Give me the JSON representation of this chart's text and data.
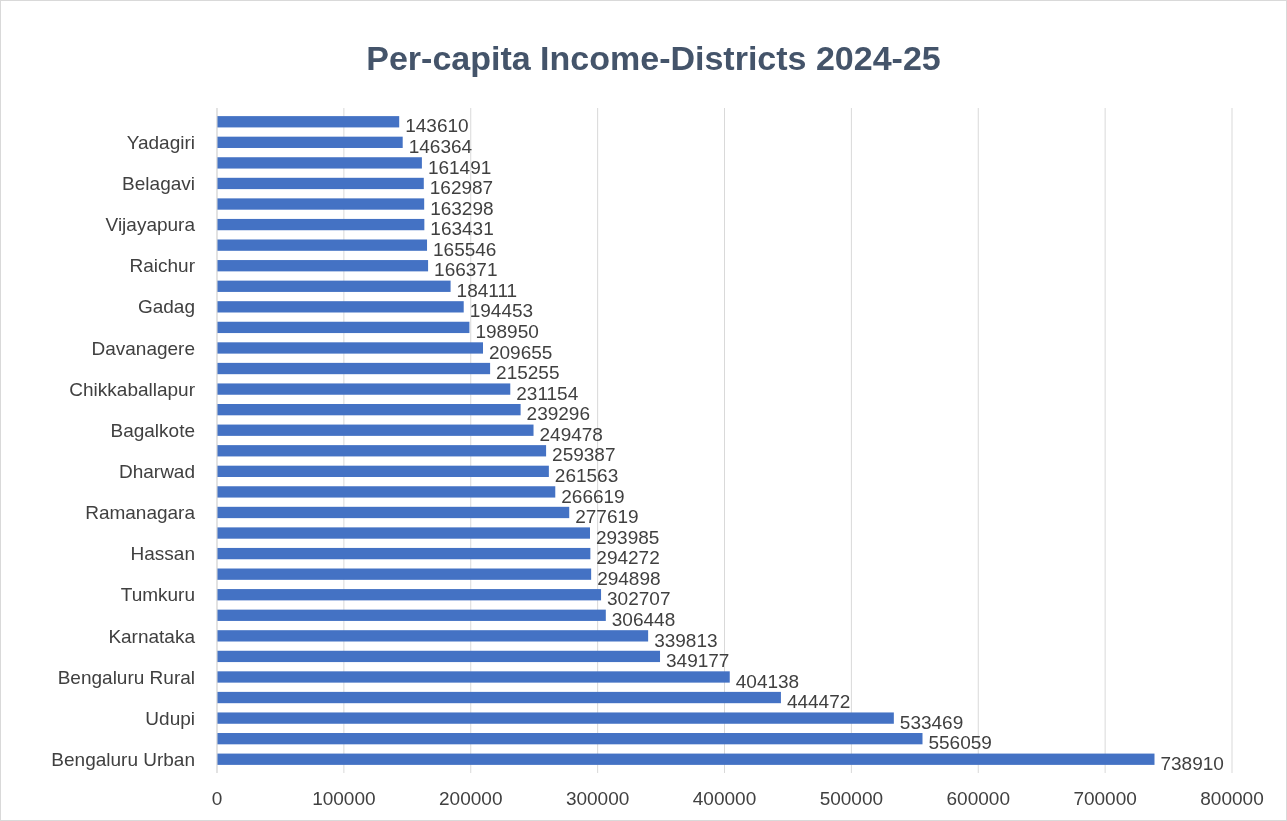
{
  "chart_data": {
    "type": "bar",
    "orientation": "horizontal",
    "title": "Per-capita Income-Districts 2024-25",
    "categories": [
      null,
      "Yadagiri",
      null,
      "Belagavi",
      null,
      "Vijayapura",
      null,
      "Raichur",
      null,
      "Gadag",
      null,
      "Davanagere",
      null,
      "Chikkaballapur",
      null,
      "Bagalkote",
      null,
      "Dharwad",
      null,
      "Ramanagara",
      null,
      "Hassan",
      null,
      "Tumkuru",
      null,
      "Karnataka",
      null,
      "Bengaluru Rural",
      null,
      "Udupi",
      null,
      "Bengaluru Urban"
    ],
    "values": [
      143610,
      146364,
      161491,
      162987,
      163298,
      163431,
      165546,
      166371,
      184111,
      194453,
      198950,
      209655,
      215255,
      231154,
      239296,
      249478,
      259387,
      261563,
      266619,
      277619,
      293985,
      294272,
      294898,
      302707,
      306448,
      339813,
      349177,
      404138,
      444472,
      533469,
      556059,
      738910
    ],
    "color": "#4472c4",
    "xlim": [
      0,
      800000
    ],
    "xticks": [
      0,
      100000,
      200000,
      300000,
      400000,
      500000,
      600000,
      700000,
      800000
    ],
    "grid": "x",
    "data_labels": true
  }
}
